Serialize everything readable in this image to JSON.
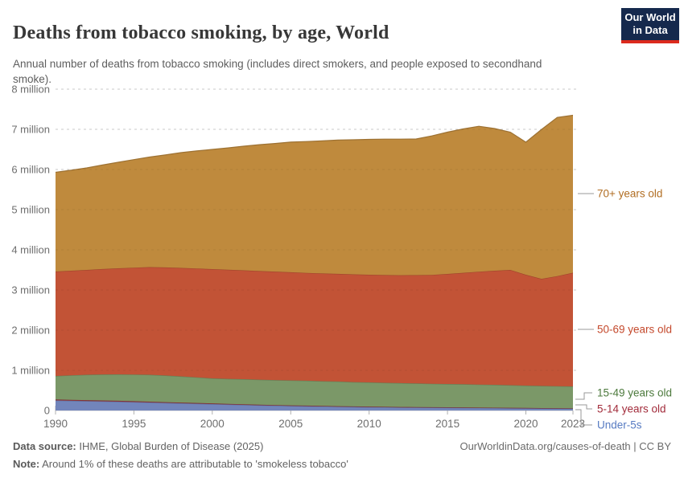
{
  "header": {
    "title": "Deaths from tobacco smoking, by age, World",
    "subtitle": "Annual number of deaths from tobacco smoking (includes direct smokers, and people exposed to secondhand smoke).",
    "logo": {
      "line1": "Our World",
      "line2": "in Data"
    }
  },
  "chart_data": {
    "type": "area",
    "stacked": true,
    "title": "Deaths from tobacco smoking, by age, World",
    "xlabel": "",
    "ylabel": "Annual number of deaths",
    "xlim": [
      1990,
      2023
    ],
    "ylim": [
      0,
      8000000
    ],
    "grid": "dashed-horizontal",
    "legend_position": "right",
    "units": "millions of deaths per year",
    "x": [
      1990,
      1991,
      1992,
      1993,
      1994,
      1995,
      1996,
      1997,
      1998,
      1999,
      2000,
      2001,
      2002,
      2003,
      2004,
      2005,
      2006,
      2007,
      2008,
      2009,
      2010,
      2011,
      2012,
      2013,
      2014,
      2015,
      2016,
      2017,
      2018,
      2019,
      2020,
      2021,
      2022,
      2023
    ],
    "series": [
      {
        "name": "Under-5s",
        "color": "#7285bb",
        "label_color": "#577bc2",
        "values": [
          0.25,
          0.242,
          0.235,
          0.228,
          0.22,
          0.21,
          0.2,
          0.19,
          0.18,
          0.17,
          0.16,
          0.15,
          0.14,
          0.13,
          0.121,
          0.115,
          0.109,
          0.102,
          0.096,
          0.09,
          0.085,
          0.081,
          0.078,
          0.075,
          0.072,
          0.07,
          0.067,
          0.064,
          0.061,
          0.058,
          0.055,
          0.052,
          0.05,
          0.048
        ]
      },
      {
        "name": "5-14 years old",
        "color": "#97383f",
        "label_color": "#a22c3b",
        "values": [
          0.025,
          0.024,
          0.023,
          0.022,
          0.022,
          0.021,
          0.02,
          0.019,
          0.018,
          0.018,
          0.017,
          0.016,
          0.016,
          0.015,
          0.015,
          0.014,
          0.014,
          0.013,
          0.013,
          0.012,
          0.012,
          0.011,
          0.011,
          0.011,
          0.01,
          0.01,
          0.01,
          0.009,
          0.009,
          0.009,
          0.009,
          0.008,
          0.008,
          0.008
        ]
      },
      {
        "name": "15-49 years old",
        "color": "#7b9868",
        "label_color": "#4d7a3d",
        "values": [
          0.585,
          0.61,
          0.632,
          0.648,
          0.658,
          0.665,
          0.67,
          0.662,
          0.652,
          0.638,
          0.623,
          0.623,
          0.624,
          0.623,
          0.622,
          0.621,
          0.618,
          0.615,
          0.612,
          0.607,
          0.603,
          0.598,
          0.593,
          0.589,
          0.584,
          0.58,
          0.577,
          0.573,
          0.57,
          0.563,
          0.556,
          0.552,
          0.548,
          0.544
        ]
      },
      {
        "name": "50-69 years old",
        "color": "#c25336",
        "label_color": "#c4492c",
        "values": [
          2.6,
          2.605,
          2.61,
          2.625,
          2.64,
          2.66,
          2.68,
          2.69,
          2.7,
          2.71,
          2.72,
          2.715,
          2.71,
          2.705,
          2.7,
          2.692,
          2.685,
          2.682,
          2.68,
          2.68,
          2.68,
          2.682,
          2.685,
          2.695,
          2.71,
          2.74,
          2.775,
          2.81,
          2.84,
          2.87,
          2.76,
          2.665,
          2.74,
          2.83
        ]
      },
      {
        "name": "70+ years old",
        "color": "#bf8a3d",
        "label_color": "#b16e23",
        "values": [
          2.47,
          2.5,
          2.54,
          2.59,
          2.64,
          2.69,
          2.74,
          2.8,
          2.87,
          2.925,
          2.98,
          3.035,
          3.09,
          3.145,
          3.19,
          3.24,
          3.27,
          3.3,
          3.33,
          3.35,
          3.37,
          3.385,
          3.39,
          3.39,
          3.46,
          3.53,
          3.58,
          3.62,
          3.54,
          3.43,
          3.3,
          3.72,
          3.95,
          3.92
        ]
      }
    ],
    "values_unit": "million",
    "y_ticks": [
      {
        "value": 0,
        "label": "0"
      },
      {
        "value": 1,
        "label": "1 million"
      },
      {
        "value": 2,
        "label": "2 million"
      },
      {
        "value": 3,
        "label": "3 million"
      },
      {
        "value": 4,
        "label": "4 million"
      },
      {
        "value": 5,
        "label": "5 million"
      },
      {
        "value": 6,
        "label": "6 million"
      },
      {
        "value": 7,
        "label": "7 million"
      },
      {
        "value": 8,
        "label": "8 million"
      }
    ],
    "x_ticks": [
      1990,
      1995,
      2000,
      2005,
      2010,
      2015,
      2020,
      2023
    ]
  },
  "footer": {
    "source_label": "Data source:",
    "source_text": " IHME, Global Burden of Disease (2025)",
    "note_label": "Note:",
    "note_text": " Around 1% of these deaths are attributable to 'smokeless tobacco'",
    "link": "OurWorldinData.org/causes-of-death | CC BY"
  }
}
